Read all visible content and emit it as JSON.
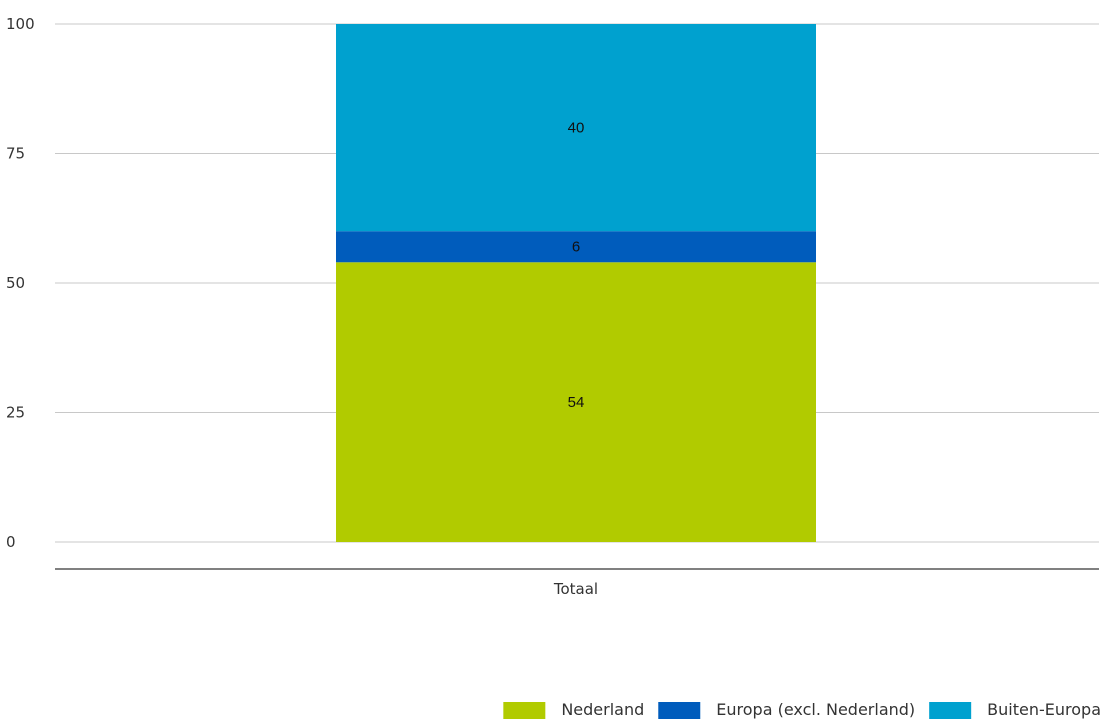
{
  "chart_data": {
    "type": "bar",
    "stacked": true,
    "categories": [
      "Totaal"
    ],
    "series": [
      {
        "name": "Nederland",
        "values": [
          54
        ],
        "color": "#b1cb00"
      },
      {
        "name": "Europa (excl. Nederland)",
        "values": [
          6
        ],
        "color": "#005cbc"
      },
      {
        "name": "Buiten-Europa",
        "values": [
          40
        ],
        "color": "#00a1cf"
      }
    ],
    "ylim": [
      0,
      100
    ],
    "yticks": [
      0,
      25,
      50,
      75,
      100
    ],
    "grid": true,
    "legend": "bottom-right",
    "gridline_color": "#c8c8c8",
    "axis_color": "#808080"
  }
}
